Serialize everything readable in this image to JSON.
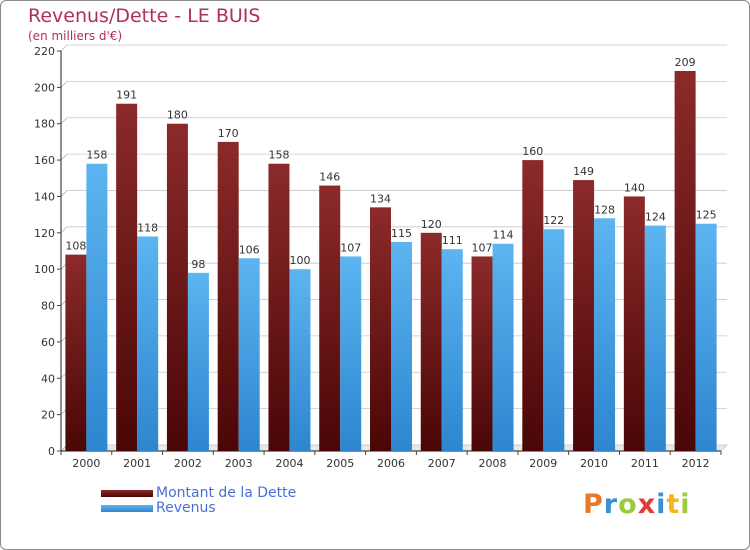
{
  "chart_data": {
    "type": "bar",
    "title": "Revenus/Dette - LE BUIS",
    "subtitle": "(en milliers d'€)",
    "categories": [
      "2000",
      "2001",
      "2002",
      "2003",
      "2004",
      "2005",
      "2006",
      "2007",
      "2008",
      "2009",
      "2010",
      "2011",
      "2012"
    ],
    "series": [
      {
        "name": "Montant de la Dette",
        "color": "#7a1a1a",
        "values": [
          108,
          191,
          180,
          170,
          158,
          146,
          134,
          120,
          107,
          160,
          149,
          140,
          209
        ]
      },
      {
        "name": "Revenus",
        "color": "#4aa3e6",
        "values": [
          158,
          118,
          98,
          106,
          100,
          107,
          115,
          111,
          114,
          122,
          128,
          124,
          125
        ]
      }
    ],
    "yticks": [
      0,
      20,
      40,
      60,
      80,
      100,
      120,
      140,
      160,
      180,
      200,
      220
    ],
    "ylim": [
      0,
      220
    ],
    "grid": true,
    "legend_position": "bottom-left"
  },
  "logo": {
    "letters": [
      {
        "ch": "P",
        "color": "#e8782a"
      },
      {
        "ch": "r",
        "color": "#3a8fd6"
      },
      {
        "ch": "o",
        "color": "#9acb3c"
      },
      {
        "ch": "x",
        "color": "#e23a3a"
      },
      {
        "ch": "i",
        "color": "#3a8fd6"
      },
      {
        "ch": "t",
        "color": "#f2b71a"
      },
      {
        "ch": "i",
        "color": "#9acb3c"
      }
    ]
  }
}
